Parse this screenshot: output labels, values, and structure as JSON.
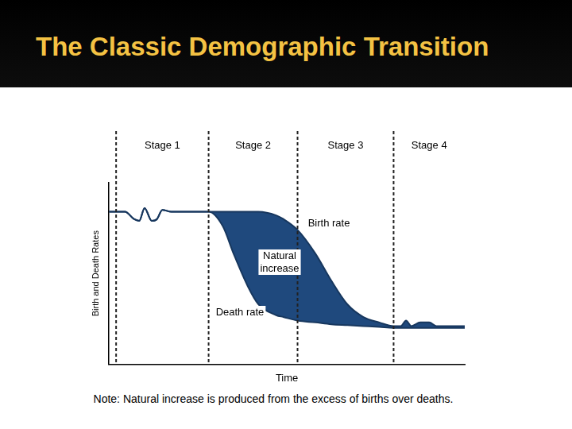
{
  "chart_data": {
    "type": "line",
    "title": "The Classic Demographic Transition",
    "x_label": "Time",
    "y_label": "Birth and Death Rates",
    "note": "Note: Natural increase is produced from the excess of births over deaths.",
    "annotations": [
      "Natural increase"
    ],
    "stages": [
      "Stage 1",
      "Stage 2",
      "Stage 3",
      "Stage 4"
    ],
    "stage_boundaries": [
      2,
      28,
      53,
      80
    ],
    "x": [
      0,
      4.5,
      7,
      8.5,
      10,
      12,
      13.5,
      15,
      17.5,
      28,
      32,
      35,
      39,
      42,
      47,
      49,
      53,
      58,
      62.5,
      67,
      71.5,
      76,
      80,
      82,
      83.5,
      85,
      87.5,
      90,
      92,
      100
    ],
    "series": [
      {
        "name": "Birth rate",
        "color": "#17375e",
        "values": [
          84,
          84,
          80,
          79,
          86,
          79,
          80,
          85,
          84,
          84,
          84,
          84,
          84,
          84,
          82,
          80,
          74,
          61,
          46,
          33,
          26,
          23,
          21,
          21,
          24,
          21,
          23,
          23,
          21,
          21
        ]
      },
      {
        "name": "Death rate",
        "color": "#17375e",
        "values": [
          84,
          84,
          80,
          79,
          86,
          79,
          80,
          85,
          84,
          84,
          76,
          61,
          43,
          33,
          27,
          26,
          24,
          23,
          22,
          21.5,
          21,
          20.5,
          20,
          20,
          20,
          20,
          20,
          20,
          20,
          20
        ]
      }
    ],
    "color": "#1f497d",
    "xlim": [
      0,
      100
    ],
    "ylim": [
      0,
      100
    ],
    "grid": false,
    "tick_labels": false
  }
}
